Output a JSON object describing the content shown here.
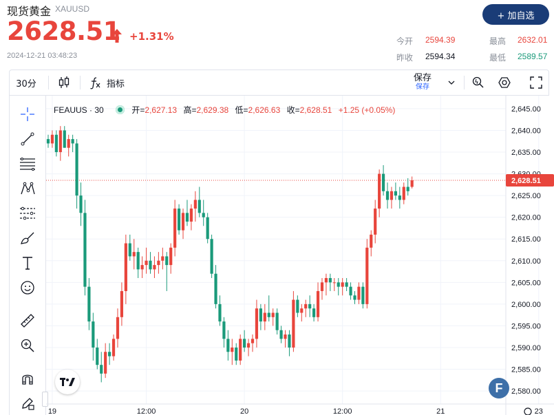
{
  "header": {
    "title": "现货黄金",
    "symbol": "XAUUSD",
    "price": "2628.51",
    "change_pct": "+1.31%",
    "timestamp": "2024-12-21 03:48:23",
    "add_watchlist": "+ 加自选",
    "stats": {
      "open_label": "今开",
      "open_value": "2594.39",
      "prev_label": "昨收",
      "prev_value": "2594.34",
      "high_label": "最高",
      "high_value": "2632.01",
      "low_label": "最低",
      "low_value": "2589.57"
    },
    "up_color": "#e8453c",
    "down_color": "#1a9a7a"
  },
  "toolbar": {
    "interval": "30分",
    "indicators": "指标",
    "save_label": "保存",
    "save_sub": "保存"
  },
  "legend": {
    "symbol": "FEAUUS · 30",
    "open_key": "开=",
    "open_val": "2,627.13",
    "high_key": "高=",
    "high_val": "2,629.38",
    "low_key": "低=",
    "low_val": "2,626.63",
    "close_key": "收=",
    "close_val": "2,628.51",
    "change": "+1.25 (+0.05%)"
  },
  "chart_data": {
    "type": "candlestick",
    "ylim": [
      2577,
      2648
    ],
    "y_ticks": [
      2580,
      2585,
      2590,
      2595,
      2600,
      2605,
      2610,
      2615,
      2620,
      2625,
      2630,
      2635,
      2640,
      2645
    ],
    "y_tick_labels": [
      "2,580.00",
      "2,585.00",
      "2,590.00",
      "2,595.00",
      "2,600.00",
      "2,605.00",
      "2,610.00",
      "2,615.00",
      "2,620.00",
      "2,625.00",
      "2,630.00",
      "2,635.00",
      "2,640.00",
      "2,645.00"
    ],
    "x_ticks": [
      {
        "index": 1,
        "label": "19"
      },
      {
        "index": 24,
        "label": "12:00"
      },
      {
        "index": 48,
        "label": "20"
      },
      {
        "index": 72,
        "label": "12:00"
      },
      {
        "index": 96,
        "label": "21"
      },
      {
        "index": 120,
        "label": "23"
      }
    ],
    "last_price": 2628.51,
    "last_price_label": "2,628.51",
    "candles": [
      [
        2638,
        2639,
        2636,
        2637
      ],
      [
        2637,
        2640,
        2636,
        2639
      ],
      [
        2639,
        2640,
        2634,
        2635
      ],
      [
        2635,
        2641,
        2633,
        2640
      ],
      [
        2640,
        2641,
        2636,
        2636
      ],
      [
        2636,
        2639,
        2634,
        2638
      ],
      [
        2638,
        2639,
        2635,
        2637
      ],
      [
        2637,
        2638,
        2622,
        2625
      ],
      [
        2625,
        2628,
        2618,
        2621
      ],
      [
        2621,
        2624,
        2602,
        2604
      ],
      [
        2604,
        2606,
        2594,
        2596
      ],
      [
        2596,
        2598,
        2587,
        2590
      ],
      [
        2590,
        2592,
        2585,
        2586
      ],
      [
        2586,
        2589,
        2582,
        2584
      ],
      [
        2584,
        2591,
        2583,
        2589
      ],
      [
        2589,
        2591,
        2586,
        2588
      ],
      [
        2588,
        2593,
        2587,
        2592
      ],
      [
        2592,
        2599,
        2590,
        2597
      ],
      [
        2597,
        2605,
        2595,
        2603
      ],
      [
        2603,
        2616,
        2600,
        2614
      ],
      [
        2614,
        2616,
        2610,
        2611
      ],
      [
        2611,
        2615,
        2608,
        2612
      ],
      [
        2612,
        2613,
        2606,
        2608
      ],
      [
        2608,
        2611,
        2606,
        2609
      ],
      [
        2609,
        2613,
        2607,
        2610
      ],
      [
        2610,
        2612,
        2607,
        2608
      ],
      [
        2608,
        2611,
        2606,
        2609
      ],
      [
        2609,
        2612,
        2607,
        2610
      ],
      [
        2610,
        2613,
        2608,
        2611
      ],
      [
        2611,
        2612,
        2603,
        2609
      ],
      [
        2609,
        2614,
        2607,
        2613
      ],
      [
        2613,
        2624,
        2611,
        2622
      ],
      [
        2622,
        2623,
        2616,
        2617
      ],
      [
        2617,
        2622,
        2615,
        2621
      ],
      [
        2621,
        2624,
        2618,
        2619
      ],
      [
        2619,
        2623,
        2617,
        2622
      ],
      [
        2622,
        2626,
        2619,
        2624
      ],
      [
        2624,
        2627,
        2620,
        2621
      ],
      [
        2621,
        2624,
        2618,
        2620
      ],
      [
        2620,
        2621,
        2614,
        2615
      ],
      [
        2615,
        2616,
        2606,
        2607
      ],
      [
        2607,
        2609,
        2599,
        2600
      ],
      [
        2600,
        2602,
        2595,
        2596
      ],
      [
        2596,
        2597,
        2590,
        2592
      ],
      [
        2592,
        2594,
        2587,
        2589
      ],
      [
        2589,
        2592,
        2586,
        2590
      ],
      [
        2590,
        2591,
        2586,
        2587
      ],
      [
        2587,
        2593,
        2586,
        2592
      ],
      [
        2592,
        2594,
        2589,
        2590
      ],
      [
        2590,
        2592,
        2588,
        2591
      ],
      [
        2591,
        2593,
        2589,
        2592
      ],
      [
        2592,
        2601,
        2590,
        2599
      ],
      [
        2599,
        2600,
        2594,
        2596
      ],
      [
        2596,
        2600,
        2594,
        2598
      ],
      [
        2598,
        2602,
        2596,
        2597
      ],
      [
        2597,
        2599,
        2595,
        2598
      ],
      [
        2598,
        2599,
        2593,
        2594
      ],
      [
        2594,
        2595,
        2591,
        2592
      ],
      [
        2592,
        2594,
        2590,
        2593
      ],
      [
        2593,
        2594,
        2588,
        2590
      ],
      [
        2590,
        2603,
        2589,
        2601
      ],
      [
        2601,
        2602,
        2597,
        2598
      ],
      [
        2598,
        2600,
        2596,
        2599
      ],
      [
        2599,
        2601,
        2597,
        2600
      ],
      [
        2600,
        2602,
        2597,
        2599
      ],
      [
        2599,
        2600,
        2596,
        2597
      ],
      [
        2597,
        2605,
        2596,
        2603
      ],
      [
        2603,
        2606,
        2601,
        2605
      ],
      [
        2605,
        2607,
        2602,
        2606
      ],
      [
        2606,
        2607,
        2603,
        2605
      ],
      [
        2605,
        2606,
        2603,
        2605
      ],
      [
        2605,
        2606,
        2602,
        2604
      ],
      [
        2604,
        2606,
        2602,
        2605
      ],
      [
        2605,
        2606,
        2603,
        2604
      ],
      [
        2604,
        2605,
        2601,
        2602
      ],
      [
        2602,
        2603,
        2600,
        2601
      ],
      [
        2601,
        2605,
        2600,
        2604
      ],
      [
        2604,
        2605,
        2599,
        2600
      ],
      [
        2600,
        2615,
        2599,
        2613
      ],
      [
        2613,
        2617,
        2611,
        2616
      ],
      [
        2616,
        2624,
        2614,
        2622
      ],
      [
        2622,
        2631,
        2620,
        2630
      ],
      [
        2630,
        2632,
        2625,
        2626
      ],
      [
        2626,
        2628,
        2622,
        2624
      ],
      [
        2624,
        2627,
        2622,
        2626
      ],
      [
        2626,
        2628,
        2624,
        2625
      ],
      [
        2625,
        2627,
        2622,
        2624
      ],
      [
        2624,
        2628,
        2623,
        2627
      ],
      [
        2627,
        2629,
        2625,
        2626
      ],
      [
        2627,
        2629.38,
        2626.63,
        2628.51
      ]
    ]
  }
}
